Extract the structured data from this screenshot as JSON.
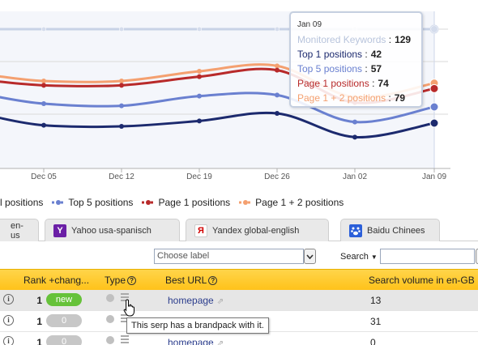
{
  "chart_data": {
    "type": "line",
    "x": [
      "",
      "Dec 05",
      "Dec 12",
      "Dec 19",
      "Dec 26",
      "Jan 02",
      "Jan 09"
    ],
    "ylim": [
      0,
      135
    ],
    "grid": true,
    "series": [
      {
        "name": "Monitored Keywords",
        "color": "#c8d2e6",
        "values": [
          129,
          129,
          129,
          129,
          129,
          129,
          129
        ]
      },
      {
        "name": "Page 1 + 2 positions",
        "color": "#f4a070",
        "values": [
          86,
          81,
          81,
          90,
          95,
          66,
          79
        ]
      },
      {
        "name": "Page 1 positions",
        "color": "#b82a2a",
        "values": [
          81,
          77,
          77,
          85,
          91,
          61,
          74
        ]
      },
      {
        "name": "Top 5 positions",
        "color": "#6a80d0",
        "values": [
          67,
          60,
          58,
          67,
          68,
          43,
          57
        ]
      },
      {
        "name": "Top 1 positions",
        "color": "#1c2a6e",
        "values": [
          48,
          40,
          39,
          44,
          51,
          29,
          42
        ]
      }
    ]
  },
  "tooltip": {
    "date": "Jan 09",
    "rows": [
      {
        "label": "Monitored Keywords",
        "value": "129",
        "color": "#b8c4dc"
      },
      {
        "label": "Top 1 positions",
        "value": "42",
        "color": "#1c2a6e"
      },
      {
        "label": "Top 5 positions",
        "value": "57",
        "color": "#6a80d0"
      },
      {
        "label": "Page 1 positions",
        "value": "74",
        "color": "#b82a2a"
      },
      {
        "label": "Page 1 + 2 positions",
        "value": "79",
        "color": "#f4a070"
      }
    ],
    "separator": ":"
  },
  "legend": [
    {
      "label": "l positions",
      "color": "#1c2a6e"
    },
    {
      "label": "Top 5 positions",
      "color": "#6a80d0"
    },
    {
      "label": "Page 1 positions",
      "color": "#b82a2a"
    },
    {
      "label": "Page 1 + 2 positions",
      "color": "#f4a070"
    }
  ],
  "tabs": [
    {
      "label": "en-us",
      "icon": ""
    },
    {
      "label": "Yahoo usa-spanisch",
      "icon": "yahoo-icon"
    },
    {
      "label": "Yandex global-english",
      "icon": "yandex-icon"
    },
    {
      "label": "Baidu Chinees",
      "icon": "baidu-icon"
    }
  ],
  "filter": {
    "label_placeholder": "Choose label",
    "search_label": "Search"
  },
  "table": {
    "headers": {
      "rank": "Rank +chang...",
      "type": "Type",
      "url": "Best URL",
      "volume": "Search volume in en-GB"
    },
    "rows": [
      {
        "rank": "1",
        "change": "new",
        "url": "homepage",
        "volume": "13"
      },
      {
        "rank": "1",
        "change": "0",
        "url": "",
        "volume": "31"
      },
      {
        "rank": "1",
        "change": "0",
        "url": "homepage",
        "volume": "0"
      }
    ]
  },
  "hover_tooltip": "This serp has a brandpack with it."
}
